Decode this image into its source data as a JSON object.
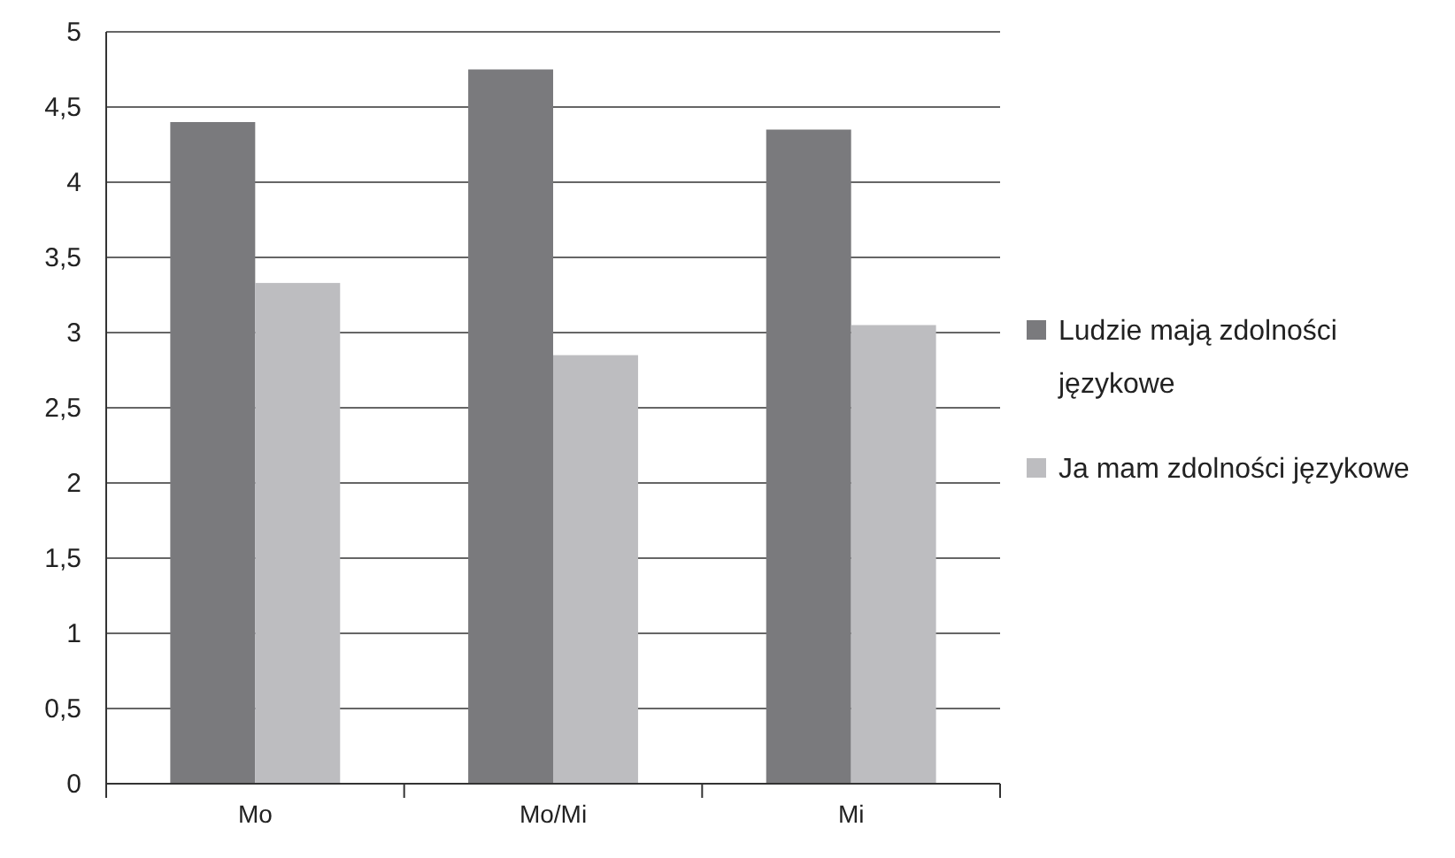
{
  "chart_data": {
    "type": "bar",
    "categories": [
      "Mo",
      "Mo/Mi",
      "Mi"
    ],
    "series": [
      {
        "name": "Ludzie mają zdolności językowe",
        "color": "#7a7a7d",
        "values": [
          4.4,
          4.75,
          4.35
        ]
      },
      {
        "name": "Ja mam zdolności językowe",
        "color": "#bdbdc0",
        "values": [
          3.33,
          2.85,
          3.05
        ]
      }
    ],
    "ylim": [
      0,
      5
    ],
    "yticks": [
      0,
      {
        "value": 0.5,
        "label": "0,5"
      },
      1,
      {
        "value": 1.5,
        "label": "1,5"
      },
      2,
      {
        "value": 2.5,
        "label": "2,5"
      },
      3,
      {
        "value": 3.5,
        "label": "3,5"
      },
      4,
      {
        "value": 4.5,
        "label": "4,5"
      },
      5
    ],
    "grid": "y",
    "legend": "right"
  }
}
